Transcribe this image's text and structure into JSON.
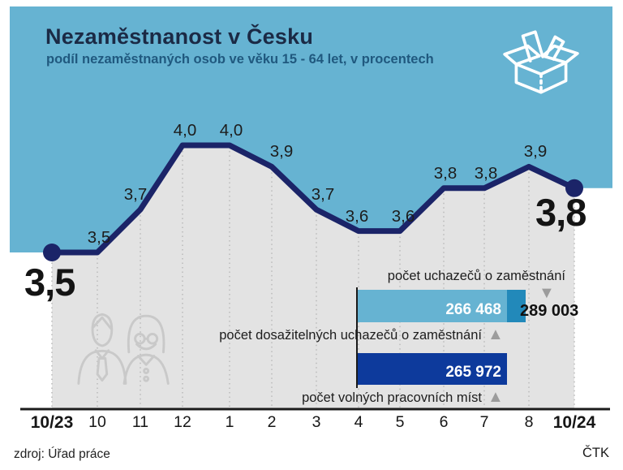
{
  "header": {
    "title": "Nezaměstnanost v Česku",
    "subtitle": "podíl nezaměstnaných osob ve věku 15 - 64 let, v procentech"
  },
  "chart_data": [
    {
      "type": "line",
      "title": "Nezaměstnanost v Česku",
      "x": [
        "10/23",
        "10",
        "11",
        "12",
        "1",
        "2",
        "3",
        "4",
        "5",
        "6",
        "7",
        "8",
        "10/24"
      ],
      "values": [
        3.5,
        3.5,
        3.7,
        4.0,
        4.0,
        3.9,
        3.7,
        3.6,
        3.6,
        3.8,
        3.8,
        3.9,
        3.8
      ],
      "point_labels": [
        "3,5",
        "3,5",
        "3,7",
        "4,0",
        "4,0",
        "3,9",
        "3,7",
        "3,6",
        "3,6",
        "3,8",
        "3,8",
        "3,9",
        "3,8"
      ],
      "first_big": "3,5",
      "last_big": "3,8",
      "ylim": [
        3.4,
        4.1
      ],
      "grid": "vertical-dotted",
      "legend": "none"
    },
    {
      "type": "bar",
      "orientation": "horizontal",
      "items": [
        {
          "label": "počet uchazečů o zaměstnání",
          "value": 289003,
          "display": "289 003",
          "trend": "down"
        },
        {
          "label": "počet dosažitelných uchazečů o zaměstnání",
          "value": 266468,
          "display": "266 468",
          "trend": "up"
        },
        {
          "label": "počet volných pracovních míst",
          "value": 265972,
          "display": "265 972",
          "trend": "up"
        }
      ]
    }
  ],
  "icons": {
    "box": "open-box-icon",
    "people": "job-seekers-icon",
    "arrow_up_glyph": "▲",
    "arrow_down_glyph": "▼"
  },
  "colors": {
    "blue_background": "#66b3d2",
    "line_navy": "#1b2468",
    "area_gray": "#e3e3e3",
    "bar_light_blue": "#66b3d2",
    "bar_mid_blue": "#2289ba",
    "bar_dark_navy": "#0d3a9c",
    "arrow_gray": "#9c9c9c"
  },
  "footer": {
    "source": "zdroj: Úřad práce",
    "agency": "ČTK"
  }
}
